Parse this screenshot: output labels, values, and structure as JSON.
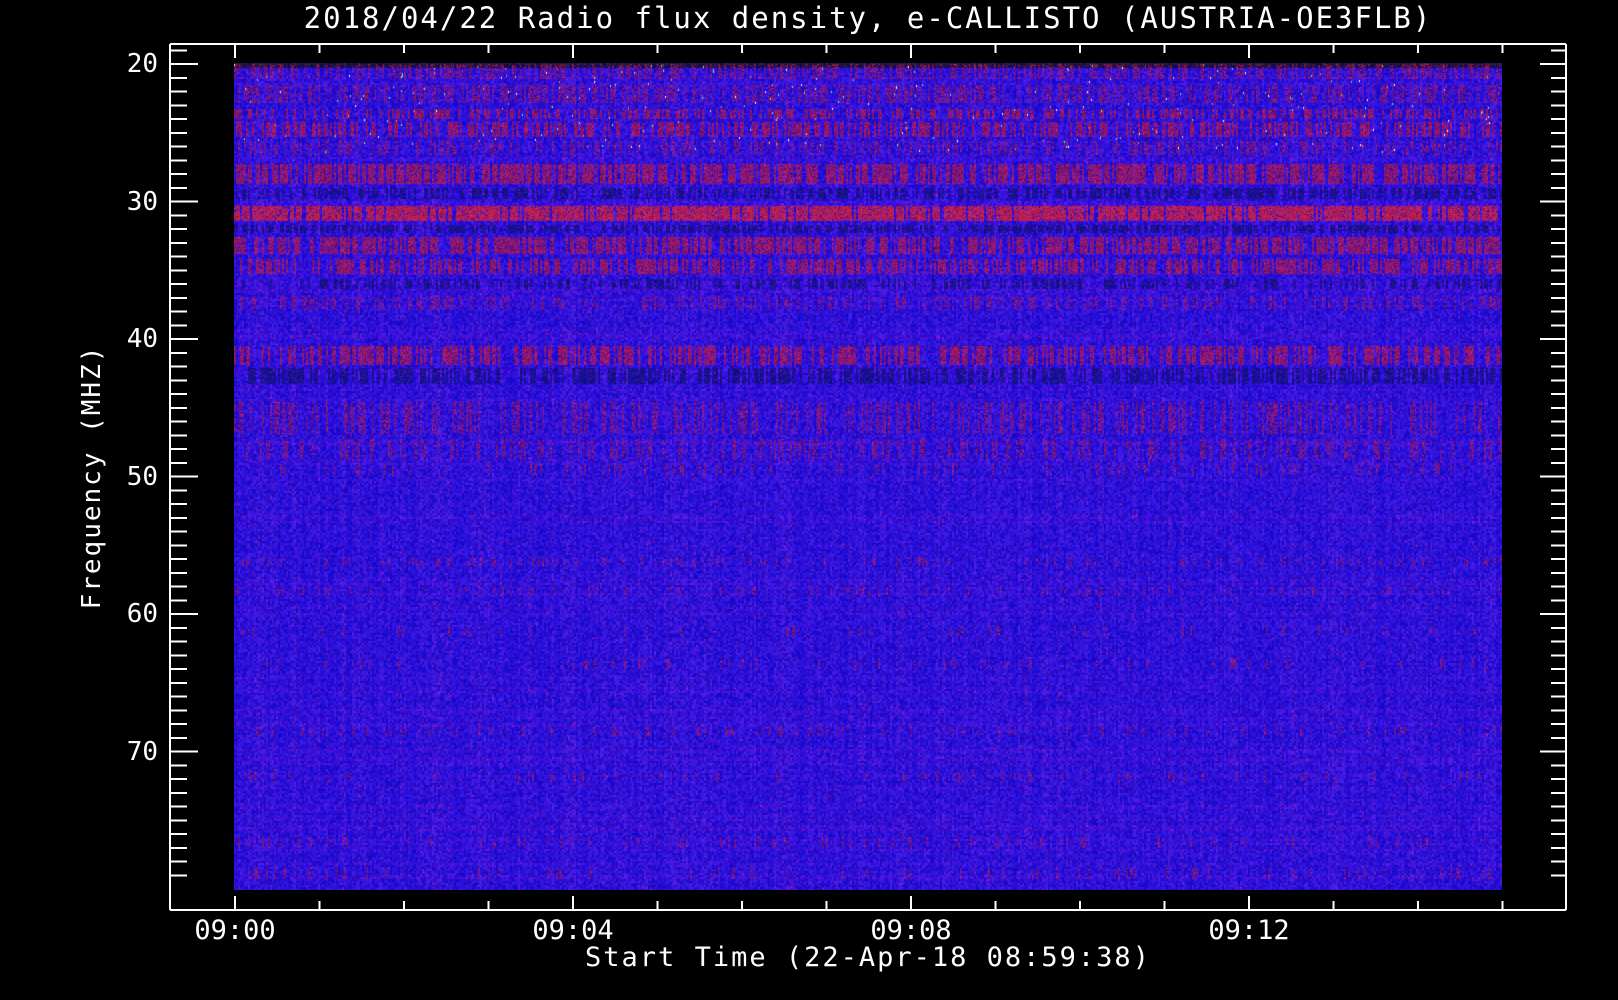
{
  "window": {
    "background": "#000000",
    "foreground": "#ffffff"
  },
  "chart_data": {
    "type": "heatmap",
    "subtype": "radio-spectrogram",
    "title": "2018/04/22  Radio flux density, e-CALLISTO (AUSTRIA-OE3FLB)",
    "xlabel": "Start Time (22-Apr-18 08:59:38)",
    "ylabel": "Frequency (MHZ)",
    "legend": "none",
    "grid": "off",
    "x_axis": {
      "unit": "time (UT)",
      "major_ticks": [
        {
          "label": "09:00",
          "minutes": 0
        },
        {
          "label": "09:04",
          "minutes": 4
        },
        {
          "label": "09:08",
          "minutes": 8
        },
        {
          "label": "09:12",
          "minutes": 12
        }
      ],
      "minor_tick_interval_minutes": 1,
      "minor_tick_range_minutes": [
        1,
        15
      ],
      "image_span_minutes": [
        0,
        15.0
      ]
    },
    "y_axis": {
      "unit": "MHz",
      "direction": "increasing-downward",
      "major_ticks": [
        {
          "label": "20",
          "mhz": 20
        },
        {
          "label": "30",
          "mhz": 30
        },
        {
          "label": "40",
          "mhz": 40
        },
        {
          "label": "50",
          "mhz": 50
        },
        {
          "label": "60",
          "mhz": 60
        },
        {
          "label": "70",
          "mhz": 70
        }
      ],
      "minor_tick_interval_mhz": 1,
      "minor_tick_range_mhz": [
        19,
        79
      ],
      "image_span_mhz": [
        19.9,
        80.1
      ]
    },
    "colors": {
      "background": "#000000",
      "axis": "#ffffff",
      "base_blue": "#2614dc",
      "rfi_red": "#c22827",
      "rfi_bright_red": "#f03522",
      "rfi_dark_blue": "#0c0c78",
      "speck_colors": [
        "#ffffff",
        "#ffd24a",
        "#ff8c2a",
        "#7dff6a",
        "#6ae0ff"
      ]
    },
    "rfi_bands": [
      {
        "f0": 20.0,
        "f1": 21.1,
        "density": 0.5,
        "type": "speckle"
      },
      {
        "f0": 21.5,
        "f1": 22.8,
        "density": 0.55,
        "type": "speckle"
      },
      {
        "f0": 23.3,
        "f1": 24.0,
        "density": 0.45,
        "type": "red"
      },
      {
        "f0": 24.2,
        "f1": 25.3,
        "density": 0.5,
        "type": "red"
      },
      {
        "f0": 25.6,
        "f1": 26.6,
        "density": 0.35,
        "type": "speckle"
      },
      {
        "f0": 27.3,
        "f1": 28.7,
        "density": 0.7,
        "type": "red"
      },
      {
        "f0": 29.0,
        "f1": 29.8,
        "density": 0.5,
        "type": "dark"
      },
      {
        "f0": 30.3,
        "f1": 31.4,
        "density": 0.85,
        "type": "hot"
      },
      {
        "f0": 31.7,
        "f1": 32.3,
        "density": 0.6,
        "type": "dark"
      },
      {
        "f0": 32.6,
        "f1": 33.8,
        "density": 0.65,
        "type": "red"
      },
      {
        "f0": 34.2,
        "f1": 35.3,
        "density": 0.5,
        "type": "red"
      },
      {
        "f0": 35.6,
        "f1": 36.4,
        "density": 0.4,
        "type": "dark"
      },
      {
        "f0": 36.9,
        "f1": 37.9,
        "density": 0.3,
        "type": "speckle"
      },
      {
        "f0": 40.5,
        "f1": 41.9,
        "density": 0.5,
        "type": "red"
      },
      {
        "f0": 42.1,
        "f1": 43.3,
        "density": 0.55,
        "type": "dark"
      },
      {
        "f0": 44.6,
        "f1": 46.9,
        "density": 0.35,
        "type": "speckle"
      },
      {
        "f0": 47.3,
        "f1": 48.7,
        "density": 0.3,
        "type": "speckle"
      },
      {
        "f0": 49.0,
        "f1": 49.9,
        "density": 0.15,
        "type": "speckle"
      },
      {
        "f0": 55.9,
        "f1": 56.5,
        "density": 0.15,
        "type": "speckle"
      },
      {
        "f0": 58.0,
        "f1": 58.6,
        "density": 0.15,
        "type": "speckle"
      },
      {
        "f0": 60.9,
        "f1": 61.6,
        "density": 0.08,
        "type": "speckle"
      },
      {
        "f0": 63.3,
        "f1": 64.0,
        "density": 0.08,
        "type": "speckle"
      },
      {
        "f0": 68.2,
        "f1": 68.9,
        "density": 0.12,
        "type": "speckle"
      },
      {
        "f0": 71.5,
        "f1": 72.2,
        "density": 0.08,
        "type": "speckle"
      },
      {
        "f0": 76.2,
        "f1": 77.0,
        "density": 0.1,
        "type": "speckle"
      },
      {
        "f0": 78.5,
        "f1": 79.3,
        "density": 0.1,
        "type": "speckle"
      }
    ],
    "bright_specks": {
      "f0": 20.0,
      "f1": 26.5,
      "count": 260
    }
  }
}
